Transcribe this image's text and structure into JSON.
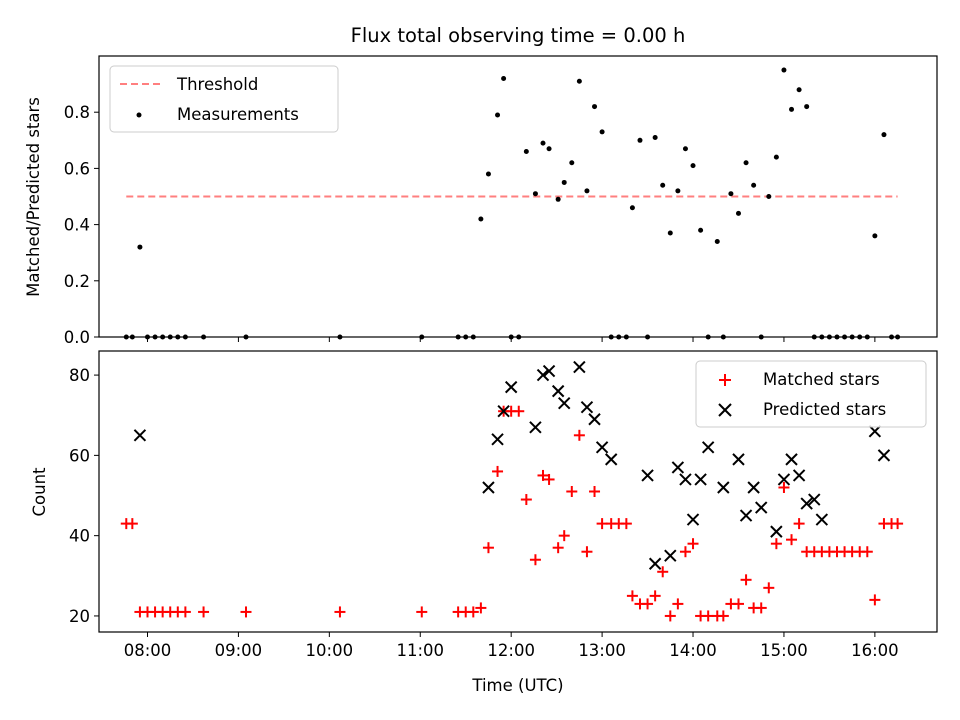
{
  "chart_data": [
    {
      "type": "scatter",
      "title": "Flux total observing time = 0.00 h",
      "xlabel": "",
      "ylabel": "Matched/Predicted stars",
      "xlim": [
        "07:28",
        "16:41"
      ],
      "ylim": [
        0,
        1.0
      ],
      "yticks": [
        0.0,
        0.2,
        0.4,
        0.6,
        0.8
      ],
      "ytick_labels": [
        "0.0",
        "0.2",
        "0.4",
        "0.6",
        "0.8"
      ],
      "legend": {
        "position": "top-left",
        "entries": [
          "Threshold",
          "Measurements"
        ]
      },
      "threshold": {
        "name": "Threshold",
        "y": 0.5,
        "x_start": "07:46",
        "x_end": "16:15",
        "color": "#ff7f7f",
        "style": "dashed"
      },
      "series": [
        {
          "name": "Measurements",
          "marker": "dot",
          "color": "#000000",
          "x": [
            "07:46",
            "07:50",
            "07:55",
            "08:00",
            "08:05",
            "08:10",
            "08:15",
            "08:20",
            "08:25",
            "08:37",
            "09:05",
            "10:07",
            "11:01",
            "11:25",
            "11:30",
            "11:35",
            "11:40",
            "11:45",
            "11:51",
            "11:55",
            "12:00",
            "12:05",
            "12:10",
            "12:16",
            "12:21",
            "12:25",
            "12:31",
            "12:35",
            "12:40",
            "12:45",
            "12:50",
            "12:55",
            "13:00",
            "13:06",
            "13:11",
            "13:16",
            "13:20",
            "13:25",
            "13:30",
            "13:35",
            "13:40",
            "13:45",
            "13:50",
            "13:55",
            "14:00",
            "14:05",
            "14:10",
            "14:16",
            "14:20",
            "14:25",
            "14:30",
            "14:35",
            "14:40",
            "14:45",
            "14:50",
            "14:55",
            "15:00",
            "15:05",
            "15:10",
            "15:15",
            "15:20",
            "15:25",
            "15:30",
            "15:35",
            "15:40",
            "15:45",
            "15:50",
            "15:55",
            "16:00",
            "16:06",
            "16:11",
            "16:15"
          ],
          "y": [
            0,
            0,
            0.32,
            0,
            0,
            0,
            0,
            0,
            0,
            0,
            0,
            0,
            0,
            0,
            0,
            0,
            0.42,
            0.58,
            0.79,
            0.92,
            0,
            0,
            0.66,
            0.51,
            0.69,
            0.67,
            0.49,
            0.55,
            0.62,
            0.91,
            0.52,
            0.82,
            0.73,
            0,
            0,
            0,
            0.46,
            0.7,
            0,
            0.71,
            0.54,
            0.37,
            0.52,
            0.67,
            0.61,
            0.38,
            0,
            0.34,
            0,
            0.51,
            0.44,
            0.62,
            0.54,
            0,
            0.5,
            0.64,
            0.95,
            0.81,
            0.88,
            0.82,
            0,
            0,
            0,
            0,
            0,
            0,
            0,
            0,
            0.36,
            0.72,
            0,
            0
          ]
        }
      ]
    },
    {
      "type": "scatter",
      "title": "",
      "xlabel": "Time (UTC)",
      "ylabel": "Count",
      "xlim": [
        "07:28",
        "16:41"
      ],
      "ylim": [
        16,
        86
      ],
      "yticks": [
        20,
        40,
        60,
        80
      ],
      "ytick_labels": [
        "20",
        "40",
        "60",
        "80"
      ],
      "xticks": [
        "08:00",
        "09:00",
        "10:00",
        "11:00",
        "12:00",
        "13:00",
        "14:00",
        "15:00",
        "16:00"
      ],
      "legend": {
        "position": "top-right",
        "entries": [
          "Matched stars",
          "Predicted stars"
        ]
      },
      "series": [
        {
          "name": "Matched stars",
          "marker": "plus",
          "color": "#ff0000",
          "x": [
            "07:46",
            "07:50",
            "07:55",
            "08:00",
            "08:05",
            "08:10",
            "08:15",
            "08:20",
            "08:25",
            "08:37",
            "09:05",
            "10:07",
            "11:01",
            "11:25",
            "11:30",
            "11:35",
            "11:40",
            "11:45",
            "11:51",
            "11:55",
            "12:00",
            "12:05",
            "12:10",
            "12:16",
            "12:21",
            "12:25",
            "12:31",
            "12:35",
            "12:40",
            "12:45",
            "12:50",
            "12:55",
            "13:00",
            "13:06",
            "13:11",
            "13:16",
            "13:20",
            "13:25",
            "13:30",
            "13:35",
            "13:40",
            "13:45",
            "13:50",
            "13:55",
            "14:00",
            "14:05",
            "14:10",
            "14:16",
            "14:20",
            "14:25",
            "14:30",
            "14:35",
            "14:40",
            "14:45",
            "14:50",
            "14:55",
            "15:00",
            "15:05",
            "15:10",
            "15:15",
            "15:20",
            "15:25",
            "15:30",
            "15:35",
            "15:40",
            "15:45",
            "15:50",
            "15:55",
            "16:00",
            "16:06",
            "16:11",
            "16:15"
          ],
          "y": [
            43,
            43,
            21,
            21,
            21,
            21,
            21,
            21,
            21,
            21,
            21,
            21,
            21,
            21,
            21,
            21,
            22,
            37,
            56,
            71,
            71,
            71,
            49,
            34,
            55,
            54,
            37,
            40,
            51,
            65,
            36,
            51,
            43,
            43,
            43,
            43,
            25,
            23,
            23,
            25,
            31,
            20,
            23,
            36,
            38,
            20,
            20,
            20,
            20,
            23,
            23,
            29,
            22,
            22,
            27,
            38,
            52,
            39,
            43,
            36,
            36,
            36,
            36,
            36,
            36,
            36,
            36,
            36,
            24,
            43,
            43,
            43
          ]
        },
        {
          "name": "Predicted stars",
          "marker": "x",
          "color": "#000000",
          "x": [
            "07:55",
            "11:45",
            "11:51",
            "11:55",
            "12:00",
            "12:16",
            "12:21",
            "12:25",
            "12:31",
            "12:35",
            "12:45",
            "12:50",
            "12:55",
            "13:00",
            "13:06",
            "13:30",
            "13:35",
            "13:45",
            "13:50",
            "13:55",
            "14:00",
            "14:05",
            "14:10",
            "14:20",
            "14:30",
            "14:35",
            "14:40",
            "14:45",
            "14:55",
            "15:00",
            "15:05",
            "15:10",
            "15:15",
            "15:20",
            "15:25",
            "16:00",
            "16:06"
          ],
          "y": [
            65,
            52,
            64,
            71,
            77,
            67,
            80,
            81,
            76,
            73,
            82,
            72,
            69,
            62,
            59,
            55,
            33,
            35,
            57,
            54,
            44,
            54,
            62,
            52,
            59,
            45,
            52,
            47,
            41,
            54,
            59,
            55,
            48,
            49,
            44,
            66,
            60
          ]
        }
      ]
    }
  ]
}
